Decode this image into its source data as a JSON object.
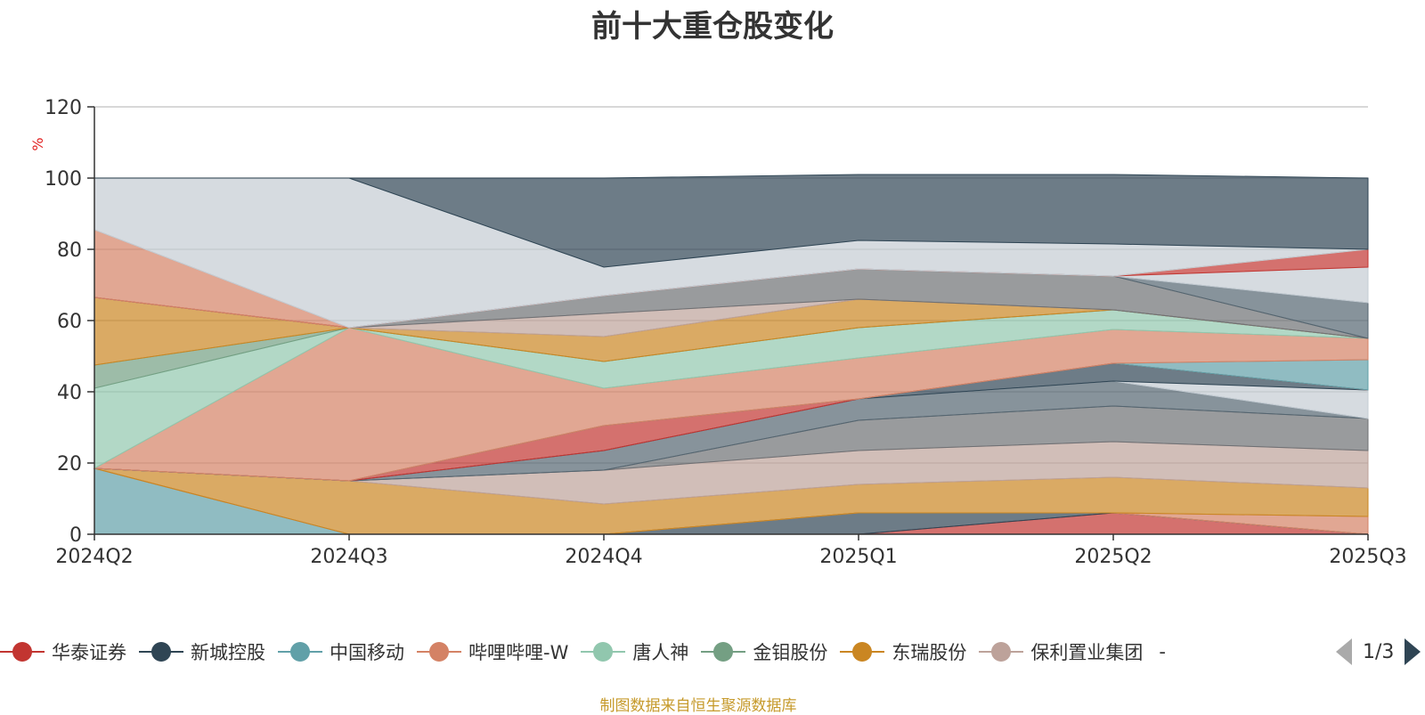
{
  "chart_data": {
    "type": "area",
    "title": "前十大重仓股变化",
    "ylabel": "%",
    "ylim": [
      0,
      120
    ],
    "yticks": [
      0,
      20,
      40,
      60,
      80,
      100,
      120
    ],
    "categories": [
      "2024Q2",
      "2024Q3",
      "2024Q4",
      "2025Q1",
      "2025Q2",
      "2025Q3"
    ],
    "grid": true,
    "stacked": true,
    "series": [
      {
        "name": "华泰证券",
        "color": "#c23531",
        "values": [
          0,
          0,
          0,
          0,
          6,
          0
        ]
      },
      {
        "name": "新城控股",
        "color": "#2f4554",
        "values": [
          0,
          0,
          0,
          6,
          0,
          0
        ]
      },
      {
        "name": "中国移动",
        "color": "#61a0a8",
        "values": [
          18.5,
          0,
          0,
          0,
          0,
          0
        ]
      },
      {
        "name": "哔哩哔哩-W",
        "color": "#d48265",
        "values": [
          0,
          0,
          0,
          0,
          0,
          5
        ]
      },
      {
        "name": "东瑞股份",
        "color": "#ca8622",
        "values": [
          0,
          15,
          8.5,
          8,
          10,
          8
        ]
      },
      {
        "name": "保利置业集团",
        "color": "#bda29a",
        "values": [
          0,
          0,
          9.5,
          9.5,
          10,
          10.5
        ]
      },
      {
        "name": "",
        "color": "#6e7074",
        "values": [
          0,
          0,
          0,
          8.5,
          10,
          9
        ]
      },
      {
        "name": "",
        "color": "#546570",
        "values": [
          0,
          0,
          5.5,
          6,
          7,
          0
        ]
      },
      {
        "name": "",
        "color": "#c4ccd3",
        "values": [
          0,
          0,
          0,
          0,
          0,
          8
        ]
      },
      {
        "name": "",
        "color": "#2f4554",
        "values": [
          0,
          0,
          0,
          0,
          5,
          0
        ]
      },
      {
        "name": "",
        "color": "#c23531",
        "values": [
          0,
          0,
          7,
          0,
          0,
          0
        ]
      },
      {
        "name": "",
        "color": "#61a0a8",
        "values": [
          0,
          0,
          0,
          0,
          0,
          8.5
        ]
      },
      {
        "name": "",
        "color": "#d48265",
        "values": [
          0,
          43,
          10.5,
          11.5,
          9.5,
          6
        ]
      },
      {
        "name": "唐人神",
        "color": "#91c7ae",
        "values": [
          22.5,
          0,
          7.5,
          8.5,
          5.5,
          0
        ]
      },
      {
        "name": "金钼股份",
        "color": "#749f83",
        "values": [
          6.5,
          0,
          0,
          0,
          0,
          0
        ]
      },
      {
        "name": "",
        "color": "#ca8622",
        "values": [
          19,
          0,
          7,
          8,
          0,
          0
        ]
      },
      {
        "name": "",
        "color": "#bda29a",
        "values": [
          0,
          0,
          6.5,
          0,
          0,
          0
        ]
      },
      {
        "name": "",
        "color": "#6e7074",
        "values": [
          0,
          0,
          5,
          8.5,
          9.5,
          0
        ]
      },
      {
        "name": "",
        "color": "#546570",
        "values": [
          0,
          0,
          0,
          0,
          0,
          10
        ]
      },
      {
        "name": "",
        "color": "#c4ccd3",
        "values": [
          0,
          0,
          0,
          0,
          0,
          10
        ]
      },
      {
        "name": "",
        "color": "#c23531",
        "values": [
          0,
          0,
          0,
          0,
          0,
          5
        ]
      },
      {
        "name": "",
        "color": "#d48265",
        "values": [
          19,
          0,
          0,
          0,
          0,
          0
        ]
      },
      {
        "name": "",
        "color": "#c4ccd3",
        "values": [
          14.5,
          42,
          8,
          8,
          9,
          0
        ]
      },
      {
        "name": "",
        "color": "#2f4554",
        "values": [
          0,
          0,
          25,
          18.5,
          19.5,
          20
        ]
      }
    ]
  },
  "legend": {
    "items": [
      {
        "label": "华泰证券",
        "color": "#c23531"
      },
      {
        "label": "新城控股",
        "color": "#2f4554"
      },
      {
        "label": "中国移动",
        "color": "#61a0a8"
      },
      {
        "label": "哔哩哔哩-W",
        "color": "#d48265"
      },
      {
        "label": "唐人神",
        "color": "#91c7ae"
      },
      {
        "label": "金钼股份",
        "color": "#749f83"
      },
      {
        "label": "东瑞股份",
        "color": "#ca8622"
      },
      {
        "label": "保利置业集团",
        "color": "#bda29a"
      }
    ],
    "more": "-",
    "page": "1/3"
  },
  "source": "制图数据来自恒生聚源数据库"
}
